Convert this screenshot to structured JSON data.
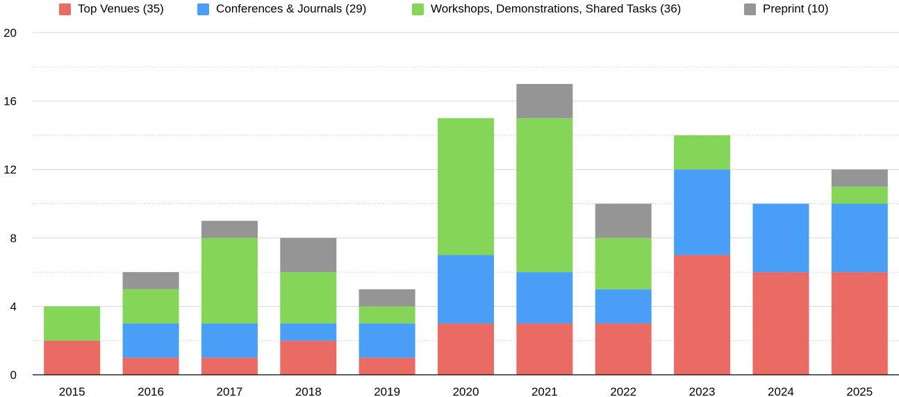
{
  "chart_data": {
    "type": "bar",
    "stacked": true,
    "categories": [
      "2015",
      "2016",
      "2017",
      "2018",
      "2019",
      "2020",
      "2021",
      "2022",
      "2023",
      "2024",
      "2025"
    ],
    "series": [
      {
        "name": "Top Venues (35)",
        "color": "#ea6a64",
        "values": [
          2,
          1,
          1,
          2,
          1,
          3,
          3,
          3,
          7,
          6,
          6
        ]
      },
      {
        "name": "Conferences & Journals (29)",
        "color": "#489ff5",
        "values": [
          0,
          2,
          2,
          1,
          2,
          4,
          3,
          2,
          5,
          4,
          4
        ]
      },
      {
        "name": "Workshops, Demonstrations, Shared Tasks (36)",
        "color": "#84d558",
        "values": [
          2,
          2,
          5,
          3,
          1,
          8,
          9,
          3,
          2,
          0,
          1
        ]
      },
      {
        "name": "Preprint (10)",
        "color": "#959595",
        "values": [
          0,
          1,
          1,
          2,
          1,
          0,
          2,
          2,
          0,
          0,
          1
        ]
      }
    ],
    "ylim": [
      0,
      20
    ],
    "yticks": [
      "0",
      "4",
      "8",
      "12",
      "16",
      "20"
    ],
    "grid": "major solid, minor dotted",
    "legend_position": "top"
  }
}
